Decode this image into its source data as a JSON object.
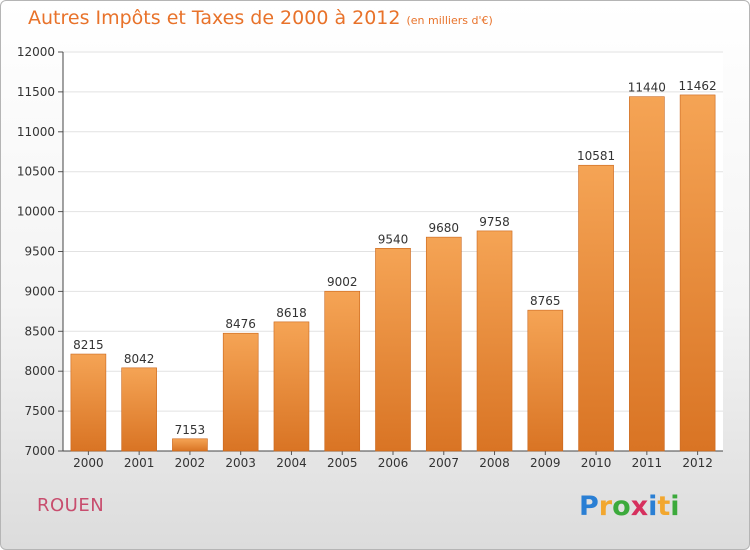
{
  "title": "Autres Impôts et Taxes de 2000 à 2012",
  "subtitle": "(en milliers d'€)",
  "city": "ROUEN",
  "logo": {
    "letters": [
      "P",
      "r",
      "o",
      "x",
      "i",
      "t",
      "i"
    ],
    "colors": [
      "#2a7fd4",
      "#f2a72f",
      "#3caa3c",
      "#d6305e",
      "#2a7fd4",
      "#f2a72f",
      "#3caa3c"
    ]
  },
  "colors": {
    "bar_top": "#f5a455",
    "bar_bottom": "#d97424",
    "title": "#e8722a",
    "city": "#c84d6e"
  },
  "chart_data": {
    "type": "bar",
    "categories": [
      "2000",
      "2001",
      "2002",
      "2003",
      "2004",
      "2005",
      "2006",
      "2007",
      "2008",
      "2009",
      "2010",
      "2011",
      "2012"
    ],
    "values": [
      8215,
      8042,
      7153,
      8476,
      8618,
      9002,
      9540,
      9680,
      9758,
      8765,
      10581,
      11440,
      11462
    ],
    "data_labels": [
      "8215",
      "8042",
      "7153",
      "8476",
      "8618",
      "9002",
      "9540",
      "9680",
      "9758",
      "8765",
      "10581",
      "11440",
      "11462"
    ],
    "ylim": [
      7000,
      12000
    ],
    "yticks": [
      7000,
      7500,
      8000,
      8500,
      9000,
      9500,
      10000,
      10500,
      11000,
      11500,
      12000
    ],
    "ytick_labels": [
      "7000",
      "7500",
      "8000",
      "8500",
      "9000",
      "9500",
      "10000",
      "10500",
      "11000",
      "11500",
      "12000"
    ],
    "grid": "horizontal",
    "legend": "none"
  }
}
